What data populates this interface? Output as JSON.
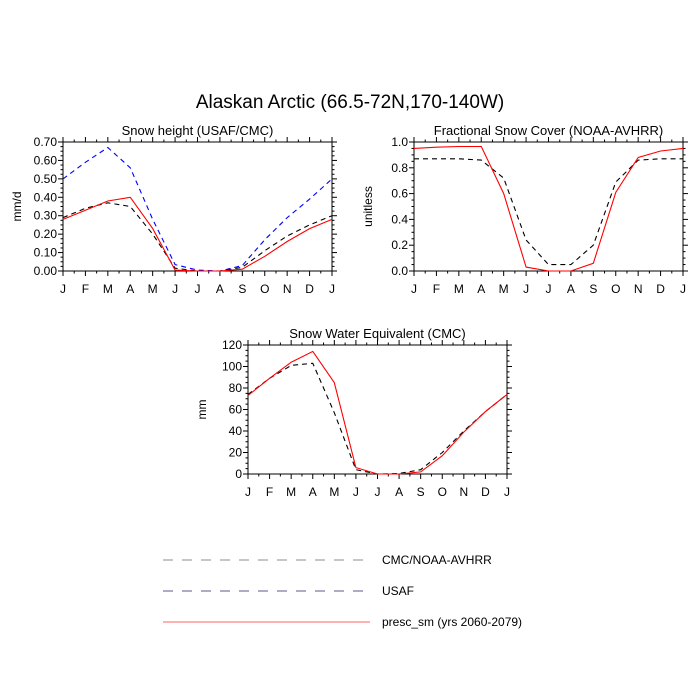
{
  "title": "Alaskan Arctic (66.5-72N,170-140W)",
  "colors": {
    "obs": "#000000",
    "usaf": "#0000ff",
    "model": "#ff0000",
    "legend_gray": "#8c8c8c"
  },
  "legend": [
    {
      "label": "CMC/NOAA-AVHRR",
      "style": "dashed",
      "color": "#8c8c8c"
    },
    {
      "label": "USAF",
      "style": "dashed",
      "color": "#5a5a8c"
    },
    {
      "label": "presc_sm (yrs 2060-2079)",
      "style": "solid",
      "color": "#ff6666"
    }
  ],
  "chart_data": [
    {
      "type": "line",
      "title": "Snow height (USAF/CMC)",
      "xlabel": "",
      "ylabel": "mm/d",
      "categories": [
        "J",
        "F",
        "M",
        "A",
        "M",
        "J",
        "J",
        "A",
        "S",
        "O",
        "N",
        "D",
        "J"
      ],
      "ylim": [
        0,
        0.7
      ],
      "yticks": [
        "0.00",
        "0.10",
        "0.20",
        "0.30",
        "0.40",
        "0.50",
        "0.60",
        "0.70"
      ],
      "series": [
        {
          "name": "CMC/NOAA-AVHRR",
          "style": "dashed",
          "color": "#000000",
          "values": [
            0.29,
            0.34,
            0.37,
            0.35,
            0.2,
            0.015,
            0.0,
            0.0,
            0.02,
            0.11,
            0.19,
            0.25,
            0.3
          ]
        },
        {
          "name": "USAF",
          "style": "dashed",
          "color": "#0000ff",
          "values": [
            0.5,
            0.59,
            0.67,
            0.56,
            0.28,
            0.035,
            0.005,
            0.0,
            0.03,
            0.17,
            0.29,
            0.39,
            0.5
          ]
        },
        {
          "name": "presc_sm (yrs 2060-2079)",
          "style": "solid",
          "color": "#ff0000",
          "values": [
            0.28,
            0.33,
            0.38,
            0.4,
            0.23,
            0.005,
            0.0,
            0.0,
            0.01,
            0.08,
            0.16,
            0.23,
            0.28
          ]
        }
      ]
    },
    {
      "type": "line",
      "title": "Fractional Snow Cover (NOAA-AVHRR)",
      "xlabel": "",
      "ylabel": "unitless",
      "categories": [
        "J",
        "F",
        "M",
        "A",
        "M",
        "J",
        "J",
        "A",
        "S",
        "O",
        "N",
        "D",
        "J"
      ],
      "ylim": [
        0,
        1.0
      ],
      "yticks": [
        "0.0",
        "0.2",
        "0.4",
        "0.6",
        "0.8",
        "1.0"
      ],
      "series": [
        {
          "name": "CMC/NOAA-AVHRR",
          "style": "dashed",
          "color": "#000000",
          "values": [
            0.87,
            0.87,
            0.87,
            0.86,
            0.72,
            0.24,
            0.05,
            0.05,
            0.2,
            0.69,
            0.86,
            0.87,
            0.87
          ]
        },
        {
          "name": "presc_sm (yrs 2060-2079)",
          "style": "solid",
          "color": "#ff0000",
          "values": [
            0.95,
            0.96,
            0.965,
            0.965,
            0.6,
            0.03,
            0.0,
            0.0,
            0.06,
            0.61,
            0.88,
            0.93,
            0.95
          ]
        }
      ]
    },
    {
      "type": "line",
      "title": "Snow Water Equivalent (CMC)",
      "xlabel": "",
      "ylabel": "mm",
      "categories": [
        "J",
        "F",
        "M",
        "A",
        "M",
        "J",
        "J",
        "A",
        "S",
        "O",
        "N",
        "D",
        "J"
      ],
      "ylim": [
        0,
        120
      ],
      "yticks": [
        "0",
        "20",
        "40",
        "60",
        "80",
        "100",
        "120"
      ],
      "series": [
        {
          "name": "CMC/NOAA-AVHRR",
          "style": "dashed",
          "color": "#000000",
          "values": [
            74,
            89,
            101,
            103,
            57,
            4,
            0,
            0.5,
            4,
            20,
            40,
            58,
            74
          ]
        },
        {
          "name": "presc_sm (yrs 2060-2079)",
          "style": "solid",
          "color": "#ff0000",
          "values": [
            73,
            89,
            104,
            114,
            85,
            6,
            0,
            0,
            2,
            17,
            39,
            58,
            74
          ]
        }
      ]
    }
  ]
}
